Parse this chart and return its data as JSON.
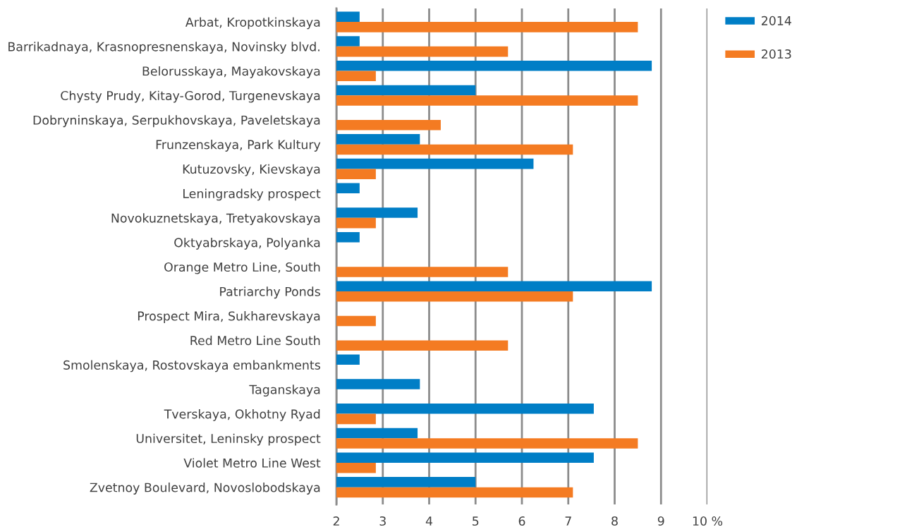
{
  "chart_data": {
    "type": "bar",
    "orientation": "horizontal",
    "categories": [
      "Arbat, Kropotkinskaya",
      "Barrikadnaya, Krasnopresnenskaya, Novinsky blvd.",
      "Belorusskaya, Mayakovskaya",
      "Chysty Prudy, Kitay-Gorod, Turgenevskaya",
      "Dobryninskaya, Serpukhovskaya, Paveletskaya",
      "Frunzenskaya, Park Kultury",
      "Kutuzovsky, Kievskaya",
      "Leningradsky prospect",
      "Novokuznetskaya, Tretyakovskaya",
      "Oktyabrskaya, Polyanka",
      "Orange Metro Line, South",
      "Patriarchy Ponds",
      "Prospect Mira, Sukharevskaya",
      "Red Metro Line South",
      "Smolenskaya, Rostovskaya embankments",
      "Taganskaya",
      "Tverskaya, Okhotny Ryad",
      "Universitet, Leninsky prospect",
      "Violet Metro Line West",
      "Zvetnoy Boulevard, Novoslobodskaya"
    ],
    "series": [
      {
        "name": "2014",
        "color": "#007ec6",
        "values": [
          2.5,
          2.5,
          8.8,
          5.0,
          null,
          3.8,
          6.25,
          2.5,
          3.75,
          2.5,
          null,
          8.8,
          null,
          null,
          2.5,
          3.8,
          7.55,
          3.75,
          7.55,
          5.0
        ]
      },
      {
        "name": "2013",
        "color": "#f47b22",
        "values": [
          8.5,
          5.7,
          2.85,
          8.5,
          4.25,
          7.1,
          2.85,
          null,
          2.85,
          null,
          5.7,
          7.1,
          2.85,
          5.7,
          null,
          null,
          2.85,
          8.5,
          2.85,
          7.1
        ]
      }
    ],
    "xlim": [
      2,
      10
    ],
    "xticks": [
      2,
      3,
      4,
      5,
      6,
      7,
      8,
      9,
      {
        "value": 10,
        "label": "10 %"
      }
    ],
    "grid": "x",
    "legend": "top right"
  }
}
